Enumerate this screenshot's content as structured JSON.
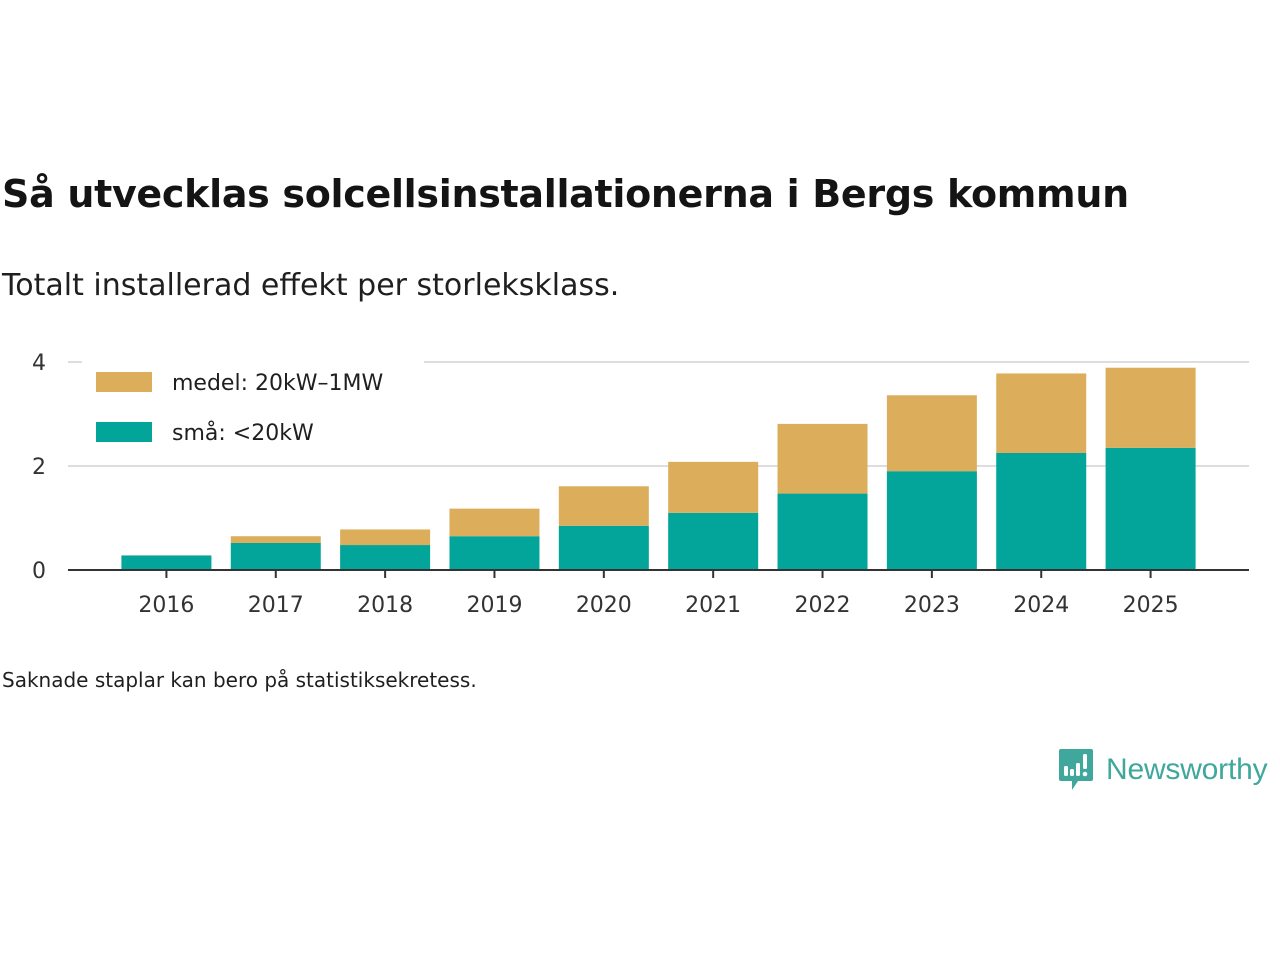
{
  "header": {
    "title": "Så utvecklas solcellsinstallationerna i Bergs kommun",
    "subtitle": "Totalt installerad effekt per storleksklass."
  },
  "footer": {
    "note": "Saknade staplar kan bero på statistiksekretess.",
    "brand": "Newsworthy"
  },
  "colors": {
    "medel": "#dcae5b",
    "sma": "#03a49a",
    "grid": "#dddddd",
    "axis": "#333333",
    "brand": "#3fa79c"
  },
  "chart_data": {
    "type": "bar",
    "stacked": true,
    "categories": [
      "2016",
      "2017",
      "2018",
      "2019",
      "2020",
      "2021",
      "2022",
      "2023",
      "2024",
      "2025"
    ],
    "series": [
      {
        "name": "små: <20kW",
        "key": "sma",
        "values": [
          0.28,
          0.52,
          0.48,
          0.65,
          0.85,
          1.1,
          1.47,
          1.9,
          2.25,
          2.35
        ]
      },
      {
        "name": "medel: 20kW–1MW",
        "key": "medel",
        "values": [
          0.0,
          0.13,
          0.3,
          0.53,
          0.76,
          0.98,
          1.34,
          1.46,
          1.53,
          1.54
        ]
      }
    ],
    "legend_order": [
      "medel",
      "sma"
    ],
    "yticks": [
      0,
      2,
      4
    ],
    "ylim": [
      0,
      4.2
    ],
    "title": "Så utvecklas solcellsinstallationerna i Bergs kommun",
    "xlabel": "",
    "ylabel": "",
    "legend_position": "top-left",
    "grid": true
  }
}
